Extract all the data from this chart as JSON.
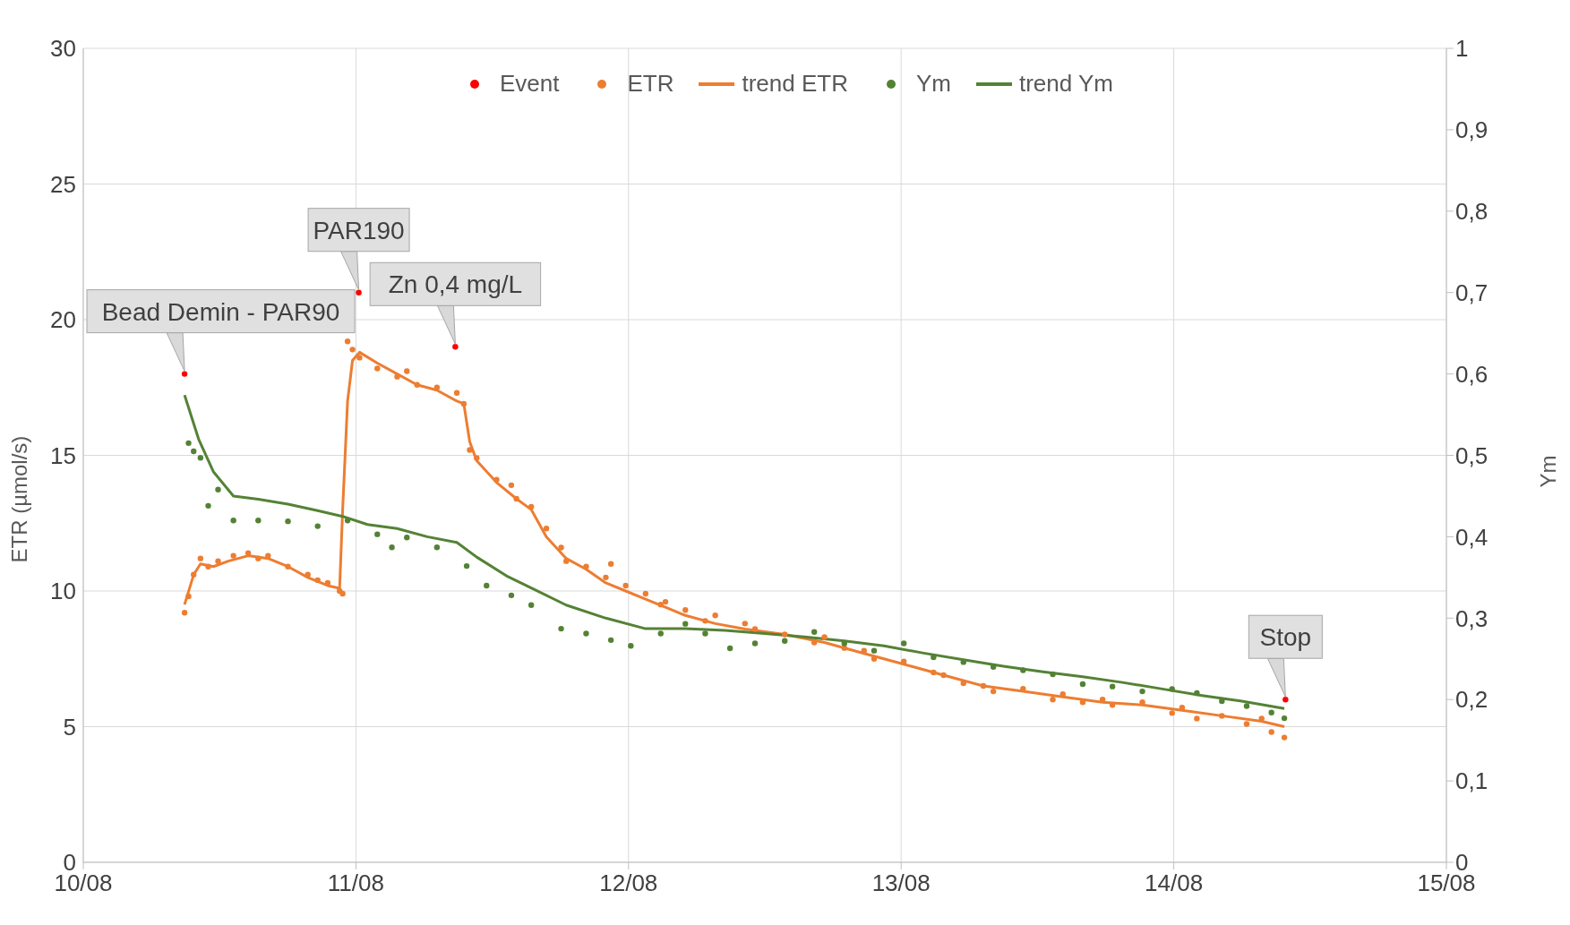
{
  "chart_data": {
    "type": "scatter",
    "ylabel": "ETR (µmol/s)",
    "y2label": "Ym",
    "xlim": [
      "--08-10",
      "--08-15"
    ],
    "xticks": [
      {
        "value": "--08-10",
        "label": "10/08"
      },
      {
        "value": "--08-11",
        "label": "11/08"
      },
      {
        "value": "--08-12",
        "label": "12/08"
      },
      {
        "value": "--08-13",
        "label": "13/08"
      },
      {
        "value": "--08-14",
        "label": "14/08"
      },
      {
        "value": "--08-15",
        "label": "15/08"
      }
    ],
    "ylim": [
      0,
      30
    ],
    "yticks": [
      0,
      5,
      10,
      15,
      20,
      25,
      30
    ],
    "y2lim": [
      0,
      1
    ],
    "y2ticks": [
      0,
      {
        "value": 0.1,
        "label": "0,1"
      },
      {
        "value": 0.2,
        "label": "0,2"
      },
      {
        "value": 0.3,
        "label": "0,3"
      },
      {
        "value": 0.4,
        "label": "0,4"
      },
      {
        "value": 0.5,
        "label": "0,5"
      },
      {
        "value": 0.6,
        "label": "0,6"
      },
      {
        "value": 0.7,
        "label": "0,7"
      },
      {
        "value": 0.8,
        "label": "0,8"
      },
      {
        "value": 0.9,
        "label": "0,9"
      },
      1
    ],
    "grid": true,
    "legend": "top",
    "line_style": "solid",
    "series": [
      {
        "name": "Event",
        "marker": "circle",
        "color": "#ff0000",
        "x": [
          "--08-10T08:55",
          "--08-11T00:15",
          "--08-11T08:45",
          "--08-14T09:50"
        ],
        "values": [
          18,
          21,
          19,
          6
        ]
      },
      {
        "name": "ETR",
        "marker": "circle",
        "color": "#ed7d31",
        "x": [
          "--08-10T08:55",
          "--08-10T09:16",
          "--08-10T09:43",
          "--08-10T10:19",
          "--08-10T11:00",
          "--08-10T11:52",
          "--08-10T13:13",
          "--08-10T14:31",
          "--08-10T15:24",
          "--08-10T16:16",
          "--08-10T18:01",
          "--08-10T19:46",
          "--08-10T20:38",
          "--08-10T21:31",
          "--08-10T22:34",
          "--08-10T22:50",
          "--08-10T23:16",
          "--08-10T23:42",
          "--08-11T00:19",
          "--08-11T01:53",
          "--08-11T03:38",
          "--08-11T04:29",
          "--08-11T05:23",
          "--08-11T07:08",
          "--08-11T08:53",
          "--08-11T09:30",
          "--08-11T10:01",
          "--08-11T10:38",
          "--08-11T12:23",
          "--08-11T13:41",
          "--08-11T14:08",
          "--08-11T15:26",
          "--08-11T16:46",
          "--08-11T18:04",
          "--08-11T18:31",
          "--08-11T20:16",
          "--08-11T22:00",
          "--08-11T22:27",
          "--08-11T23:45",
          "--08-12T01:30",
          "--08-12T02:50",
          "--08-12T03:15",
          "--08-12T05:00",
          "--08-12T06:45",
          "--08-12T07:38",
          "--08-12T10:15",
          "--08-12T11:08",
          "--08-12T13:45",
          "--08-12T16:21",
          "--08-12T17:15",
          "--08-12T19:00",
          "--08-12T20:44",
          "--08-12T21:37",
          "--08-13T00:14",
          "--08-13T02:51",
          "--08-13T03:44",
          "--08-13T05:29",
          "--08-13T07:14",
          "--08-13T08:07",
          "--08-13T10:44",
          "--08-13T13:21",
          "--08-13T14:14",
          "--08-13T15:59",
          "--08-13T17:44",
          "--08-13T18:36",
          "--08-13T21:14",
          "--08-13T23:51",
          "--08-14T00:44",
          "--08-14T02:02",
          "--08-14T04:14",
          "--08-14T06:25",
          "--08-14T07:44",
          "--08-14T08:36",
          "--08-14T09:44"
        ],
        "values": [
          9.2,
          9.8,
          10.6,
          11.2,
          10.9,
          11.1,
          11.3,
          11.4,
          11.2,
          11.3,
          10.9,
          10.6,
          10.4,
          10.3,
          10.0,
          9.9,
          19.2,
          18.9,
          18.6,
          18.2,
          17.9,
          18.1,
          17.6,
          17.5,
          17.3,
          16.9,
          15.2,
          14.9,
          14.1,
          13.9,
          13.4,
          13.1,
          12.3,
          11.6,
          11.1,
          10.9,
          10.5,
          11.0,
          10.2,
          9.9,
          9.5,
          9.6,
          9.3,
          8.9,
          9.1,
          8.8,
          8.6,
          8.4,
          8.1,
          8.3,
          7.9,
          7.8,
          7.5,
          7.4,
          7.0,
          6.9,
          6.6,
          6.5,
          6.3,
          6.4,
          6.0,
          6.2,
          5.9,
          6.0,
          5.8,
          5.9,
          5.5,
          5.7,
          5.3,
          5.4,
          5.1,
          5.3,
          4.8,
          4.6
        ]
      },
      {
        "name": "trend ETR",
        "type": "line",
        "marker": "none",
        "color": "#ed7d31",
        "x": [
          "--08-10T08:55",
          "--08-10T09:43",
          "--08-10T10:19",
          "--08-10T11:27",
          "--08-10T12:46",
          "--08-10T14:31",
          "--08-10T16:16",
          "--08-10T18:01",
          "--08-10T19:46",
          "--08-10T21:31",
          "--08-10T22:34",
          "--08-10T22:50",
          "--08-10T23:16",
          "--08-10T23:42",
          "--08-11T00:19",
          "--08-11T01:53",
          "--08-11T03:38",
          "--08-11T05:23",
          "--08-11T07:08",
          "--08-11T08:53",
          "--08-11T09:30",
          "--08-11T10:01",
          "--08-11T10:38",
          "--08-11T12:23",
          "--08-11T14:08",
          "--08-11T15:26",
          "--08-11T16:46",
          "--08-11T18:31",
          "--08-11T20:16",
          "--08-11T22:00",
          "--08-11T23:45",
          "--08-12T01:30",
          "--08-12T03:15",
          "--08-12T05:00",
          "--08-12T07:38",
          "--08-12T10:15",
          "--08-12T13:45",
          "--08-12T17:15",
          "--08-12T20:44",
          "--08-13T00:14",
          "--08-13T03:44",
          "--08-13T07:14",
          "--08-13T10:44",
          "--08-13T14:14",
          "--08-13T17:44",
          "--08-13T21:14",
          "--08-14T00:44",
          "--08-14T04:14",
          "--08-14T07:44",
          "--08-14T09:44"
        ],
        "values": [
          9.5,
          10.6,
          11.0,
          10.9,
          11.1,
          11.3,
          11.2,
          10.9,
          10.5,
          10.2,
          10.1,
          13,
          17.0,
          18.5,
          18.8,
          18.4,
          18.0,
          17.6,
          17.4,
          17.0,
          16.9,
          15.5,
          14.8,
          14.0,
          13.4,
          13.0,
          12.0,
          11.2,
          10.8,
          10.3,
          10.0,
          9.7,
          9.4,
          9.1,
          8.8,
          8.6,
          8.4,
          8.1,
          7.7,
          7.3,
          6.9,
          6.5,
          6.3,
          6.1,
          5.9,
          5.8,
          5.6,
          5.4,
          5.2,
          5.0
        ]
      },
      {
        "name": "Ym",
        "marker": "circle",
        "axis": "y2",
        "color": "#548235",
        "x": [
          "--08-10T09:16",
          "--08-10T09:43",
          "--08-10T10:19",
          "--08-10T11:00",
          "--08-10T11:52",
          "--08-10T13:13",
          "--08-10T15:24",
          "--08-10T18:01",
          "--08-10T20:38",
          "--08-10T23:16",
          "--08-11T01:53",
          "--08-11T03:10",
          "--08-11T04:29",
          "--08-11T07:08",
          "--08-11T09:45",
          "--08-11T11:30",
          "--08-11T13:41",
          "--08-11T15:26",
          "--08-11T18:04",
          "--08-11T20:16",
          "--08-11T22:27",
          "--08-12T00:12",
          "--08-12T02:50",
          "--08-12T05:00",
          "--08-12T06:45",
          "--08-12T08:56",
          "--08-12T11:08",
          "--08-12T13:45",
          "--08-12T16:21",
          "--08-12T19:00",
          "--08-12T21:37",
          "--08-13T00:14",
          "--08-13T02:51",
          "--08-13T05:29",
          "--08-13T08:07",
          "--08-13T10:44",
          "--08-13T13:21",
          "--08-13T15:59",
          "--08-13T18:36",
          "--08-13T21:14",
          "--08-13T23:51",
          "--08-14T02:02",
          "--08-14T04:14",
          "--08-14T06:25",
          "--08-14T08:36",
          "--08-14T09:44"
        ],
        "values": [
          0.515,
          0.505,
          0.497,
          0.438,
          0.458,
          0.42,
          0.42,
          0.419,
          0.413,
          0.42,
          0.403,
          0.387,
          0.399,
          0.387,
          0.364,
          0.34,
          0.328,
          0.316,
          0.287,
          0.281,
          0.273,
          0.266,
          0.281,
          0.293,
          0.281,
          0.263,
          0.269,
          0.272,
          0.283,
          0.269,
          0.26,
          0.269,
          0.252,
          0.246,
          0.24,
          0.236,
          0.231,
          0.219,
          0.216,
          0.21,
          0.213,
          0.208,
          0.198,
          0.192,
          0.184,
          0.177
        ]
      },
      {
        "name": "trend Ym",
        "type": "line",
        "marker": "none",
        "axis": "y2",
        "color": "#548235",
        "x": [
          "--08-10T08:55",
          "--08-10T10:09",
          "--08-10T11:27",
          "--08-10T13:13",
          "--08-10T15:24",
          "--08-10T18:01",
          "--08-10T20:38",
          "--08-10T22:50",
          "--08-11T01:01",
          "--08-11T03:38",
          "--08-11T06:16",
          "--08-11T08:53",
          "--08-11T10:38",
          "--08-11T13:15",
          "--08-11T15:53",
          "--08-11T18:31",
          "--08-11T22:00",
          "--08-12T01:30",
          "--08-12T05:00",
          "--08-12T08:30",
          "--08-12T12:00",
          "--08-12T15:30",
          "--08-12T19:00",
          "--08-12T22:29",
          "--08-13T01:59",
          "--08-13T05:29",
          "--08-13T08:59",
          "--08-13T12:29",
          "--08-13T15:59",
          "--08-13T19:29",
          "--08-13T22:59",
          "--08-14T02:29",
          "--08-14T05:59",
          "--08-14T09:44"
        ],
        "values": [
          0.574,
          0.52,
          0.48,
          0.45,
          0.446,
          0.44,
          0.432,
          0.425,
          0.415,
          0.41,
          0.4,
          0.393,
          0.375,
          0.352,
          0.334,
          0.316,
          0.3,
          0.287,
          0.287,
          0.285,
          0.281,
          0.277,
          0.272,
          0.266,
          0.257,
          0.249,
          0.241,
          0.234,
          0.228,
          0.221,
          0.213,
          0.205,
          0.198,
          0.189
        ]
      }
    ],
    "annotations": [
      {
        "text": "Bead Demin - PAR90",
        "x": "--08-10T08:55",
        "y": 18
      },
      {
        "text": "PAR190",
        "x": "--08-11T00:15",
        "y": 21
      },
      {
        "text": "Zn 0,4 mg/L",
        "x": "--08-11T08:45",
        "y": 19
      },
      {
        "text": "Stop",
        "x": "--08-14T09:50",
        "y": 6
      }
    ]
  }
}
